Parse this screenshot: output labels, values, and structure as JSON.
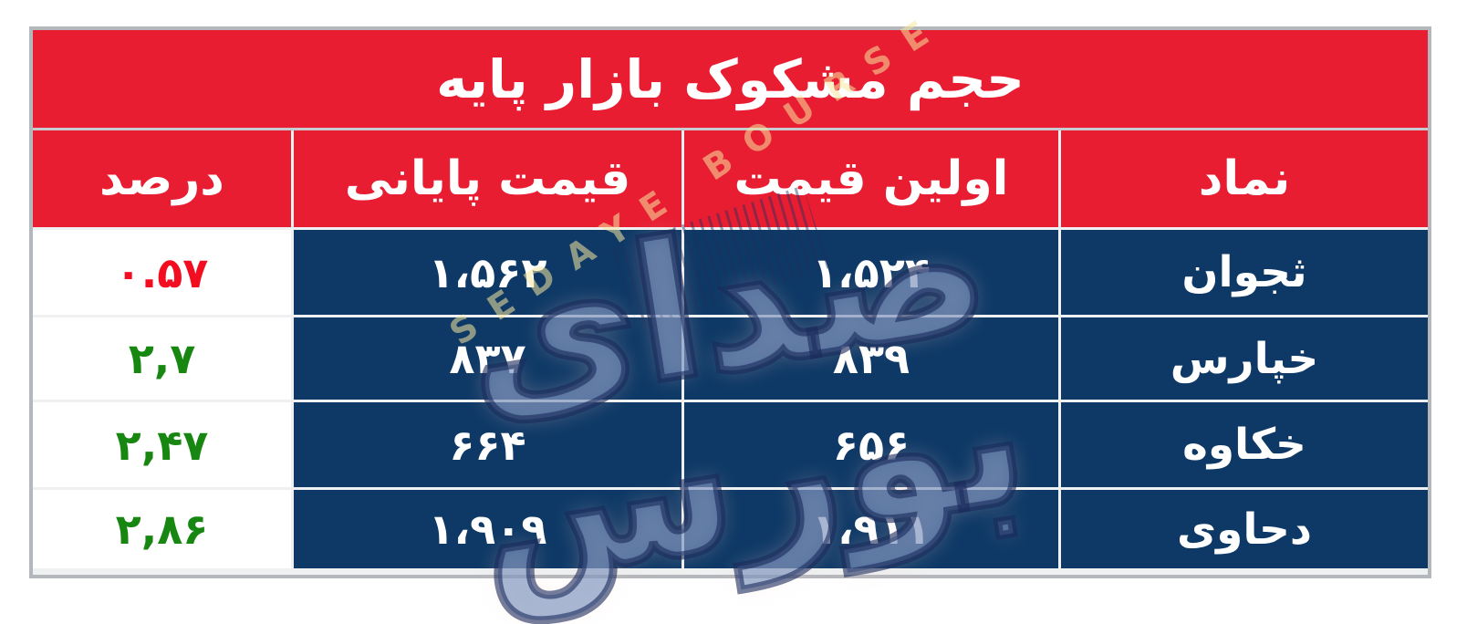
{
  "title": "حجم مشکوک بازار پایه",
  "table": {
    "columns": [
      {
        "key": "percent",
        "label": "درصد"
      },
      {
        "key": "close",
        "label": "قیمت پایانی"
      },
      {
        "key": "open",
        "label": "اولین قیمت"
      },
      {
        "key": "symbol",
        "label": "نماد"
      }
    ],
    "rows": [
      {
        "symbol": "ثجوان",
        "open": "۱،۵۲۴",
        "close": "۱،۵۶۲",
        "percent": "۰.۵۷",
        "trend": "down"
      },
      {
        "symbol": "خپارس",
        "open": "۸۳۹",
        "close": "۸۳۷",
        "percent": "۲,۷",
        "trend": "up"
      },
      {
        "symbol": "خکاوه",
        "open": "۶۵۶",
        "close": "۶۶۴",
        "percent": "۲,۴۷",
        "trend": "up"
      },
      {
        "symbol": "دحاوی",
        "open": "۱،۹۱۱",
        "close": "۱،۹۰۹",
        "percent": "۲,۸۶",
        "trend": "up"
      }
    ]
  },
  "watermark": {
    "logo_line1": "صدای",
    "logo_line2": "بورس",
    "latin": "SEDAYE BOURSE"
  },
  "colors": {
    "header_red": "#e81d32",
    "cell_navy": "#0e3966",
    "percent_up_green": "#178712",
    "percent_down_red": "#f30d20",
    "watermark_blue": "#738ebb",
    "border_gray": "#b4b7bb"
  }
}
